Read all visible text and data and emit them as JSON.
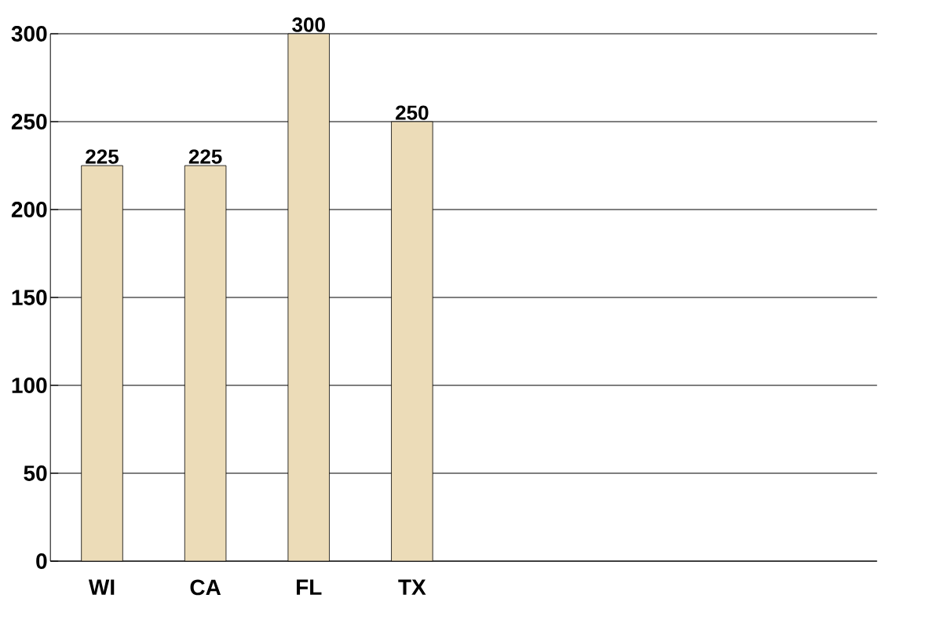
{
  "chart_data": {
    "type": "bar",
    "categories": [
      "WI",
      "CA",
      "FL",
      "TX",
      null,
      null,
      null,
      null
    ],
    "values": [
      225,
      225,
      300,
      250,
      null,
      null,
      null,
      null
    ],
    "color": "#ecdcb8",
    "ylim": [
      0,
      300
    ],
    "yticks": [
      0,
      50,
      100,
      150,
      200,
      250,
      300
    ],
    "grid": "y",
    "data_labels": true
  }
}
